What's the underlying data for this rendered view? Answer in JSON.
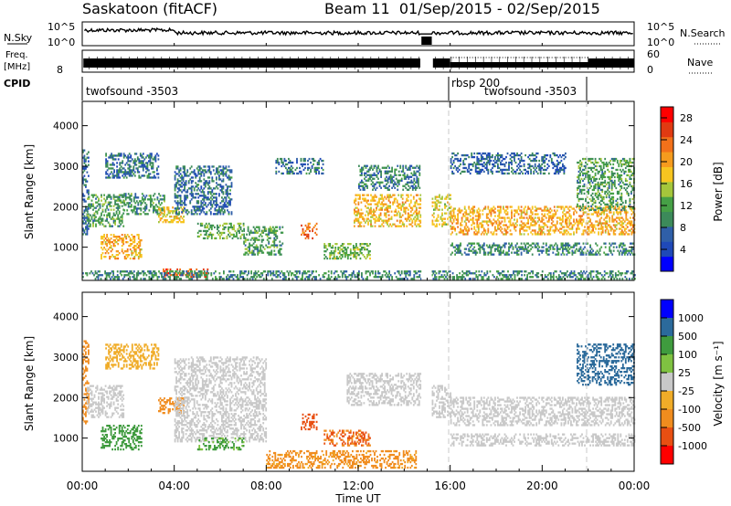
{
  "header": {
    "station": "Saskatoon (fitACF)",
    "beam_info": "Beam 11  01/Sep/2015 - 02/Sep/2015"
  },
  "top_panels": {
    "nsky_label": "N.Sky",
    "nsky_ticks": [
      "10^5",
      "10^0"
    ],
    "nsearch_label": "N.Search",
    "nsearch_ticks": [
      "10^5",
      "10^0"
    ],
    "freq_label": "Freq.",
    "freq_unit": "[MHz]",
    "freq_ticks": [
      "8"
    ],
    "nave_label": "Nave",
    "nave_ticks": [
      "60",
      "0"
    ],
    "cpid_label": "CPID",
    "cpid_segments": [
      {
        "name": "twofsound -3503",
        "start_hour": 0,
        "end_hour": 16
      },
      {
        "name": "rbsp 200",
        "start_hour": 16,
        "end_hour": 22
      },
      {
        "name": "twofsound -3503",
        "start_hour": 16.5,
        "end_hour": 22
      }
    ]
  },
  "colors": {
    "power_scale": [
      "#0000ff",
      "#1f49b8",
      "#2f5fa8",
      "#3c8a5a",
      "#46a046",
      "#a5c63b",
      "#f7c520",
      "#f59b1e",
      "#f2711a",
      "#e03a12",
      "#ff0000"
    ],
    "velocity_scale": [
      "#ff0000",
      "#e84f12",
      "#f08c1e",
      "#f0ac28",
      "#c8c8c8",
      "#7fc241",
      "#3f9b3e",
      "#2b6a9b",
      "#0000ff"
    ],
    "grid_dash": "#c8c8c8"
  },
  "chart_data": [
    {
      "type": "heatmap",
      "panel": "power",
      "title": "",
      "xlabel": "Time UT",
      "ylabel": "Slant Range [km]",
      "x_ticks": [
        "00:00",
        "04:00",
        "08:00",
        "12:00",
        "16:00",
        "20:00",
        "00:00"
      ],
      "x_range_hours": [
        0,
        24
      ],
      "y_ticks": [
        1000,
        2000,
        3000,
        4000
      ],
      "ylim": [
        180,
        4600
      ],
      "colorbar_label": "Power [dB]",
      "colorbar_ticks": [
        4,
        8,
        12,
        16,
        20,
        24,
        28
      ],
      "colorbar_range": [
        0,
        30
      ],
      "data_gap_hours": [
        [
          14.75,
          15.2
        ]
      ],
      "scatter_regions": [
        {
          "t0": 0.0,
          "t1": 0.3,
          "r0": 1300,
          "r1": 3400,
          "p": 6
        },
        {
          "t0": 0.2,
          "t1": 1.8,
          "r0": 1500,
          "r1": 2300,
          "p": 11
        },
        {
          "t0": 0.8,
          "t1": 2.6,
          "r0": 700,
          "r1": 1300,
          "p": 20
        },
        {
          "t0": 1.0,
          "t1": 3.3,
          "r0": 2700,
          "r1": 3300,
          "p": 7
        },
        {
          "t0": 1.8,
          "t1": 3.6,
          "r0": 1800,
          "r1": 2300,
          "p": 10
        },
        {
          "t0": 3.3,
          "t1": 4.4,
          "r0": 1600,
          "r1": 2000,
          "p": 18
        },
        {
          "t0": 3.5,
          "t1": 5.5,
          "r0": 250,
          "r1": 450,
          "p": 26
        },
        {
          "t0": 4.0,
          "t1": 6.5,
          "r0": 1800,
          "r1": 3000,
          "p": 7
        },
        {
          "t0": 5.0,
          "t1": 7.0,
          "r0": 1200,
          "r1": 1600,
          "p": 12
        },
        {
          "t0": 7.0,
          "t1": 8.7,
          "r0": 800,
          "r1": 1500,
          "p": 11
        },
        {
          "t0": 8.4,
          "t1": 10.5,
          "r0": 2800,
          "r1": 3200,
          "p": 7
        },
        {
          "t0": 9.5,
          "t1": 10.2,
          "r0": 1200,
          "r1": 1600,
          "p": 24
        },
        {
          "t0": 10.5,
          "t1": 12.5,
          "r0": 700,
          "r1": 1100,
          "p": 13
        },
        {
          "t0": 11.8,
          "t1": 14.7,
          "r0": 1500,
          "r1": 2300,
          "p": 19
        },
        {
          "t0": 12.0,
          "t1": 14.7,
          "r0": 2400,
          "r1": 3000,
          "p": 8
        },
        {
          "t0": 15.2,
          "t1": 16.0,
          "r0": 1500,
          "r1": 2300,
          "p": 17
        },
        {
          "t0": 16.0,
          "t1": 24.0,
          "r0": 1300,
          "r1": 2000,
          "p": 20
        },
        {
          "t0": 16.0,
          "t1": 24.0,
          "r0": 800,
          "r1": 1100,
          "p": 9
        },
        {
          "t0": 16.0,
          "t1": 21.0,
          "r0": 2800,
          "r1": 3300,
          "p": 6
        },
        {
          "t0": 21.5,
          "t1": 24.0,
          "r0": 1900,
          "r1": 3200,
          "p": 11
        },
        {
          "t0": 0.0,
          "t1": 24.0,
          "r0": 200,
          "r1": 420,
          "p": 9
        }
      ]
    },
    {
      "type": "heatmap",
      "panel": "velocity",
      "title": "",
      "xlabel": "Time UT",
      "ylabel": "Slant Range [km]",
      "x_ticks": [
        "00:00",
        "04:00",
        "08:00",
        "12:00",
        "16:00",
        "20:00",
        "00:00"
      ],
      "x_range_hours": [
        0,
        24
      ],
      "y_ticks": [
        1000,
        2000,
        3000,
        4000
      ],
      "ylim": [
        180,
        4600
      ],
      "colorbar_label": "Velocity [m s⁻¹]",
      "colorbar_ticks": [
        "1000",
        "500",
        "100",
        "25",
        "-25",
        "-100",
        "-500",
        "-1000"
      ],
      "data_gap_hours": [
        [
          14.75,
          15.2
        ]
      ],
      "scatter_regions": [
        {
          "t0": 0.0,
          "t1": 0.3,
          "r0": 1300,
          "r1": 3400,
          "v": -150
        },
        {
          "t0": 0.2,
          "t1": 1.8,
          "r0": 1500,
          "r1": 2300,
          "v": 0
        },
        {
          "t0": 0.8,
          "t1": 2.6,
          "r0": 700,
          "r1": 1300,
          "v": 200
        },
        {
          "t0": 1.0,
          "t1": 3.3,
          "r0": 2700,
          "r1": 3300,
          "v": -50
        },
        {
          "t0": 3.3,
          "t1": 4.4,
          "r0": 1600,
          "r1": 2000,
          "v": -200
        },
        {
          "t0": 4.0,
          "t1": 8.0,
          "r0": 900,
          "r1": 3000,
          "v": 0
        },
        {
          "t0": 5.0,
          "t1": 7.0,
          "r0": 700,
          "r1": 1000,
          "v": 120
        },
        {
          "t0": 9.5,
          "t1": 10.2,
          "r0": 1200,
          "r1": 1600,
          "v": -450
        },
        {
          "t0": 10.5,
          "t1": 12.5,
          "r0": 800,
          "r1": 1200,
          "v": -300
        },
        {
          "t0": 11.5,
          "t1": 14.7,
          "r0": 1800,
          "r1": 2600,
          "v": 0
        },
        {
          "t0": 8.0,
          "t1": 14.5,
          "r0": 250,
          "r1": 700,
          "v": -120
        },
        {
          "t0": 15.2,
          "t1": 16.0,
          "r0": 1500,
          "r1": 2300,
          "v": 0
        },
        {
          "t0": 16.0,
          "t1": 24.0,
          "r0": 1300,
          "r1": 2000,
          "v": 0
        },
        {
          "t0": 16.0,
          "t1": 24.0,
          "r0": 800,
          "r1": 1100,
          "v": 0
        },
        {
          "t0": 21.5,
          "t1": 24.0,
          "r0": 2300,
          "r1": 3300,
          "v": 400
        }
      ]
    }
  ]
}
